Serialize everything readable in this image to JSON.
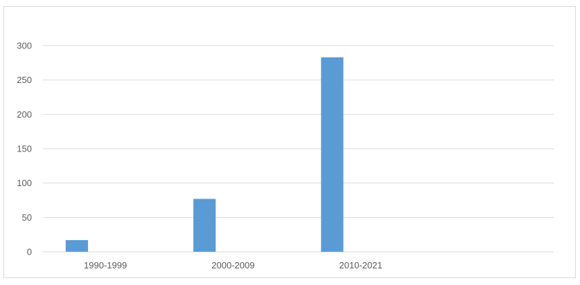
{
  "chart_data": {
    "type": "bar",
    "categories": [
      "1990-1999",
      "2000-2009",
      "2010-2021",
      ""
    ],
    "values": [
      17,
      77,
      283,
      null
    ],
    "title": "",
    "xlabel": "",
    "ylabel": "",
    "ylim": [
      0,
      300
    ],
    "yticks": [
      0,
      50,
      100,
      150,
      200,
      250,
      300
    ],
    "grid": true,
    "legend": "none",
    "bar_color": "#5b9bd5",
    "grid_color": "#d9d9d9"
  }
}
